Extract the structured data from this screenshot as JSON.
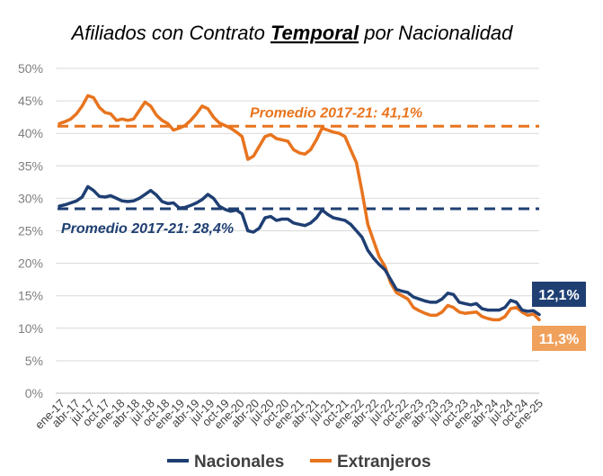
{
  "chart_data": {
    "type": "line",
    "title_parts": [
      "Afiliados con Contrato ",
      "Temporal",
      " por Nacionalidad"
    ],
    "ylim": [
      0,
      50
    ],
    "yticks": [
      "0%",
      "5%",
      "10%",
      "15%",
      "20%",
      "25%",
      "30%",
      "35%",
      "40%",
      "45%",
      "50%"
    ],
    "x_tick_labels": [
      "ene-17",
      "abr-17",
      "jul-17",
      "oct-17",
      "ene-18",
      "abr-18",
      "jul-18",
      "oct-18",
      "ene-19",
      "abr-19",
      "jul-19",
      "oct-19",
      "ene-20",
      "abr-20",
      "jul-20",
      "oct-20",
      "ene-21",
      "abr-21",
      "jul-21",
      "oct-21",
      "ene-22",
      "abr-22",
      "jul-22",
      "oct-22",
      "ene-23",
      "abr-23",
      "jul-23",
      "oct-23",
      "ene-24",
      "abr-24",
      "jul-24",
      "oct-24",
      "ene-25"
    ],
    "series": [
      {
        "name": "Nacionales",
        "color": "#1f3f73",
        "values": [
          28.8,
          29.0,
          29.3,
          29.6,
          30.2,
          31.8,
          31.2,
          30.3,
          30.2,
          30.4,
          30.0,
          29.6,
          29.5,
          29.6,
          30.0,
          30.6,
          31.2,
          30.5,
          29.5,
          29.2,
          29.3,
          28.5,
          28.6,
          28.9,
          29.3,
          29.8,
          30.6,
          30.0,
          28.8,
          28.3,
          28.0,
          28.2,
          27.6,
          25.0,
          24.8,
          25.4,
          27.0,
          27.2,
          26.6,
          26.8,
          26.8,
          26.2,
          26.0,
          25.8,
          26.2,
          27.0,
          28.2,
          27.5,
          27.0,
          26.8,
          26.6,
          26.0,
          25.0,
          24.0,
          22.0,
          20.8,
          19.8,
          19.0,
          17.5,
          16.0,
          15.7,
          15.5,
          14.8,
          14.5,
          14.2,
          14.0,
          14.0,
          14.5,
          15.4,
          15.2,
          14.0,
          13.8,
          13.6,
          13.8,
          13.0,
          12.8,
          12.8,
          12.8,
          13.2,
          14.3,
          14.0,
          12.8,
          12.6,
          12.7,
          12.1
        ],
        "end_label": "12,1%"
      },
      {
        "name": "Extranjeros",
        "color": "#e8741e",
        "values": [
          41.5,
          41.8,
          42.2,
          43.0,
          44.2,
          45.8,
          45.5,
          44.0,
          43.2,
          43.0,
          42.0,
          42.2,
          42.0,
          42.2,
          43.5,
          44.8,
          44.2,
          42.8,
          42.0,
          41.5,
          40.5,
          40.8,
          41.2,
          42.0,
          43.0,
          44.2,
          43.8,
          42.5,
          41.6,
          41.2,
          40.8,
          40.2,
          39.5,
          36.0,
          36.5,
          38.0,
          39.5,
          39.8,
          39.2,
          39.0,
          38.8,
          37.5,
          37.0,
          36.8,
          37.5,
          39.0,
          40.8,
          40.5,
          40.2,
          40.0,
          39.5,
          37.5,
          35.5,
          31.0,
          26.0,
          23.5,
          21.0,
          19.5,
          17.0,
          15.5,
          15.0,
          14.5,
          13.2,
          12.7,
          12.3,
          12.0,
          12.0,
          12.5,
          13.5,
          13.2,
          12.5,
          12.3,
          12.4,
          12.5,
          11.8,
          11.5,
          11.3,
          11.3,
          11.8,
          13.0,
          13.2,
          12.5,
          12.0,
          12.2,
          11.3
        ],
        "end_label": "11,3%"
      }
    ],
    "averages": [
      {
        "series": "Extranjeros",
        "value": 41.1,
        "label": "Promedio 2017-21: 41,1%",
        "color": "#e8741e"
      },
      {
        "series": "Nacionales",
        "value": 28.4,
        "label": "Promedio 2017-21: 28,4%",
        "color": "#1f3f73"
      }
    ],
    "end_label_colors": {
      "Nacionales": "#1f3f73",
      "Extranjeros": "#f0a15c"
    },
    "grid": true,
    "legend_position": "bottom-center"
  }
}
